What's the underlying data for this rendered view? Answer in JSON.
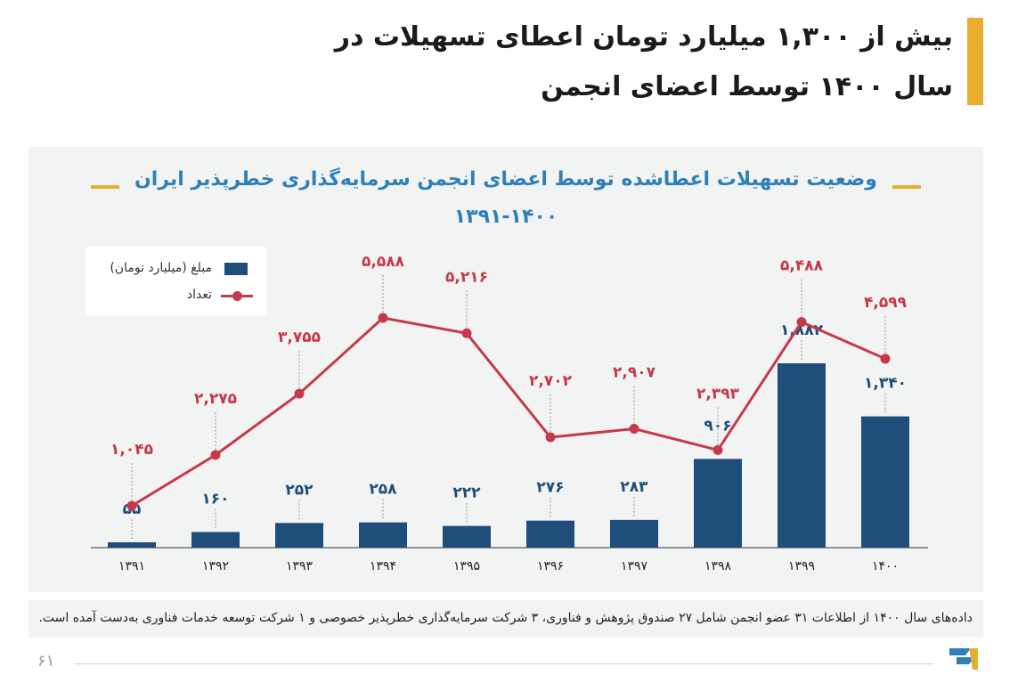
{
  "header": {
    "title_line1": "بیش از ۱,۳۰۰ میلیارد تومان اعطای تسهیلات در",
    "title_line2": "سال ۱۴۰۰ توسط اعضای انجمن"
  },
  "chart_data": {
    "type": "bar",
    "title": "وضعیت تسهیلات اعطاشده توسط اعضای انجمن سرمایه‌گذاری خطرپذیر ایران",
    "subtitle": "۱۳۹۱-۱۴۰۰",
    "categories": [
      "۱۳۹۱",
      "۱۳۹۲",
      "۱۳۹۳",
      "۱۳۹۴",
      "۱۳۹۵",
      "۱۳۹۶",
      "۱۳۹۷",
      "۱۳۹۸",
      "۱۳۹۹",
      "۱۴۰۰"
    ],
    "series": [
      {
        "name": "مبلغ (میلیارد تومان)",
        "type": "bar",
        "values": [
          55,
          160,
          252,
          258,
          222,
          276,
          283,
          906,
          1882,
          1340
        ],
        "labels": [
          "۵۵",
          "۱۶۰",
          "۲۵۲",
          "۲۵۸",
          "۲۲۲",
          "۲۷۶",
          "۲۸۳",
          "۹۰۶",
          "۱,۸۸۲",
          "۱,۳۴۰"
        ],
        "color": "#1f4e7a"
      },
      {
        "name": "تعداد",
        "type": "line",
        "values": [
          1045,
          2275,
          3755,
          5588,
          5216,
          2702,
          2907,
          2393,
          5488,
          4599
        ],
        "labels": [
          "۱,۰۴۵",
          "۲,۲۷۵",
          "۳,۷۵۵",
          "۵,۵۸۸",
          "۵,۲۱۶",
          "۲,۷۰۲",
          "۲,۹۰۷",
          "۲,۳۹۳",
          "۵,۴۸۸",
          "۴,۵۹۹"
        ],
        "color": "#c6394a"
      }
    ],
    "legend_position": "top-left",
    "grid": false
  },
  "footnote": "داده‌های سال ۱۴۰۰ از اطلاعات ۳۱ عضو انجمن شامل ۲۷ صندوق پژوهش و فناوری، ۳ شرکت سرمایه‌گذاری خطرپذیر خصوصی و ۱ شرکت توسعه خدمات فناوری به‌دست آمده است.",
  "page_number": "۶۱",
  "colors": {
    "accent": "#e9ad2e",
    "title_blue": "#2f7fb9",
    "bar": "#1f4e7a",
    "line": "#c6394a"
  },
  "icons": {
    "logo": "brand-logo-icon"
  }
}
